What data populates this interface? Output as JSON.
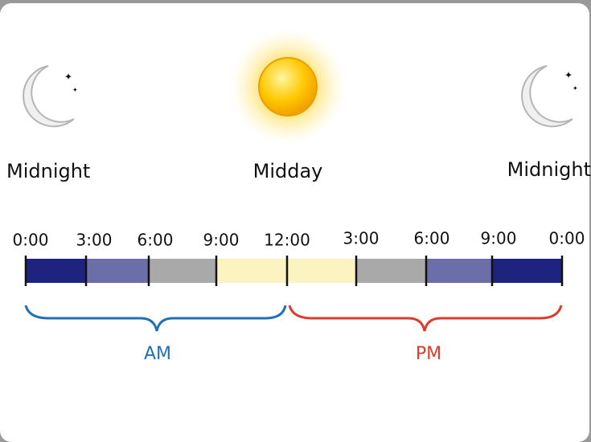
{
  "labels": {
    "left": "Midnight",
    "center": "Midday",
    "right": "Midnight"
  },
  "times": [
    "0:00",
    "3:00",
    "6:00",
    "9:00",
    "12:00",
    "3:00",
    "6:00",
    "9:00",
    "0:00"
  ],
  "periods": {
    "am": "AM",
    "pm": "PM"
  }
}
